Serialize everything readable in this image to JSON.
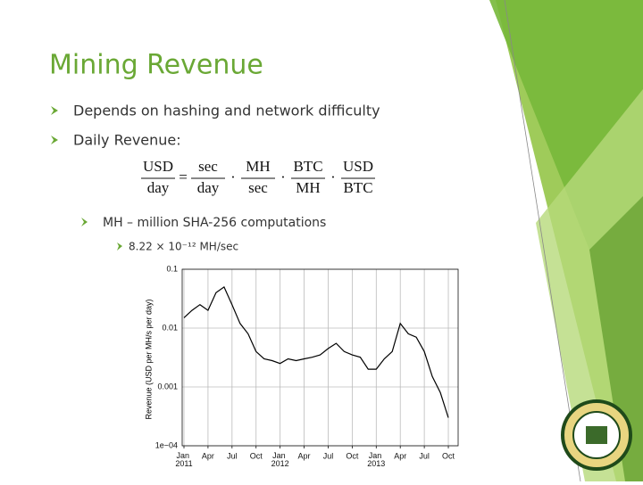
{
  "slide": {
    "title": "Mining Revenue",
    "bullets": [
      "Depends on hashing and network difficulty",
      "Daily Revenue:"
    ],
    "formula": {
      "terms": [
        {
          "num": "USD",
          "den": "day"
        },
        {
          "num": "sec",
          "den": "day"
        },
        {
          "num": "MH",
          "den": "sec"
        },
        {
          "num": "BTC",
          "den": "MH"
        },
        {
          "num": "USD",
          "den": "BTC"
        }
      ],
      "operators": [
        "=",
        "·",
        "·",
        "·"
      ]
    },
    "sub_bullet": "MH – million SHA-256 computations",
    "sub_sub_bullet": "8.22 × 10⁻¹² MH/sec"
  },
  "chart_data": {
    "type": "line",
    "y_label": "Revenue (USD per MH/s per day)",
    "log_y": true,
    "grid": true,
    "color": "#000000",
    "x": [
      "2011-01",
      "2011-02",
      "2011-03",
      "2011-04",
      "2011-05",
      "2011-06",
      "2011-07",
      "2011-08",
      "2011-09",
      "2011-10",
      "2011-11",
      "2011-12",
      "2012-01",
      "2012-02",
      "2012-03",
      "2012-04",
      "2012-05",
      "2012-06",
      "2012-07",
      "2012-08",
      "2012-09",
      "2012-10",
      "2012-11",
      "2012-12",
      "2013-01",
      "2013-02",
      "2013-03",
      "2013-04",
      "2013-05",
      "2013-06",
      "2013-07",
      "2013-08",
      "2013-09",
      "2013-10"
    ],
    "values": [
      0.015,
      0.02,
      0.025,
      0.02,
      0.04,
      0.05,
      0.025,
      0.012,
      0.008,
      0.004,
      0.003,
      0.0028,
      0.0025,
      0.003,
      0.0028,
      0.003,
      0.0032,
      0.0035,
      0.0045,
      0.0055,
      0.004,
      0.0035,
      0.0032,
      0.002,
      0.002,
      0.003,
      0.004,
      0.012,
      0.008,
      0.007,
      0.004,
      0.0015,
      0.0008,
      0.0003
    ],
    "xlim": [
      "2011-01",
      "2013-11"
    ],
    "xticks": [
      {
        "value": "2011-01",
        "label": "Jan 2011"
      },
      {
        "value": "2011-04",
        "label": "Apr"
      },
      {
        "value": "2011-07",
        "label": "Jul"
      },
      {
        "value": "2011-10",
        "label": "Oct"
      },
      {
        "value": "2012-01",
        "label": "Jan 2012"
      },
      {
        "value": "2012-04",
        "label": "Apr"
      },
      {
        "value": "2012-07",
        "label": "Jul"
      },
      {
        "value": "2012-10",
        "label": "Oct"
      },
      {
        "value": "2013-01",
        "label": "Jan 2013"
      },
      {
        "value": "2013-04",
        "label": "Apr"
      },
      {
        "value": "2013-07",
        "label": "Jul"
      },
      {
        "value": "2013-10",
        "label": "Oct"
      }
    ],
    "ylim": [
      0.0001,
      0.1
    ],
    "yticks": [
      {
        "value": 0.0001,
        "label": "1e−04"
      },
      0.001,
      0.01,
      0.1
    ]
  }
}
